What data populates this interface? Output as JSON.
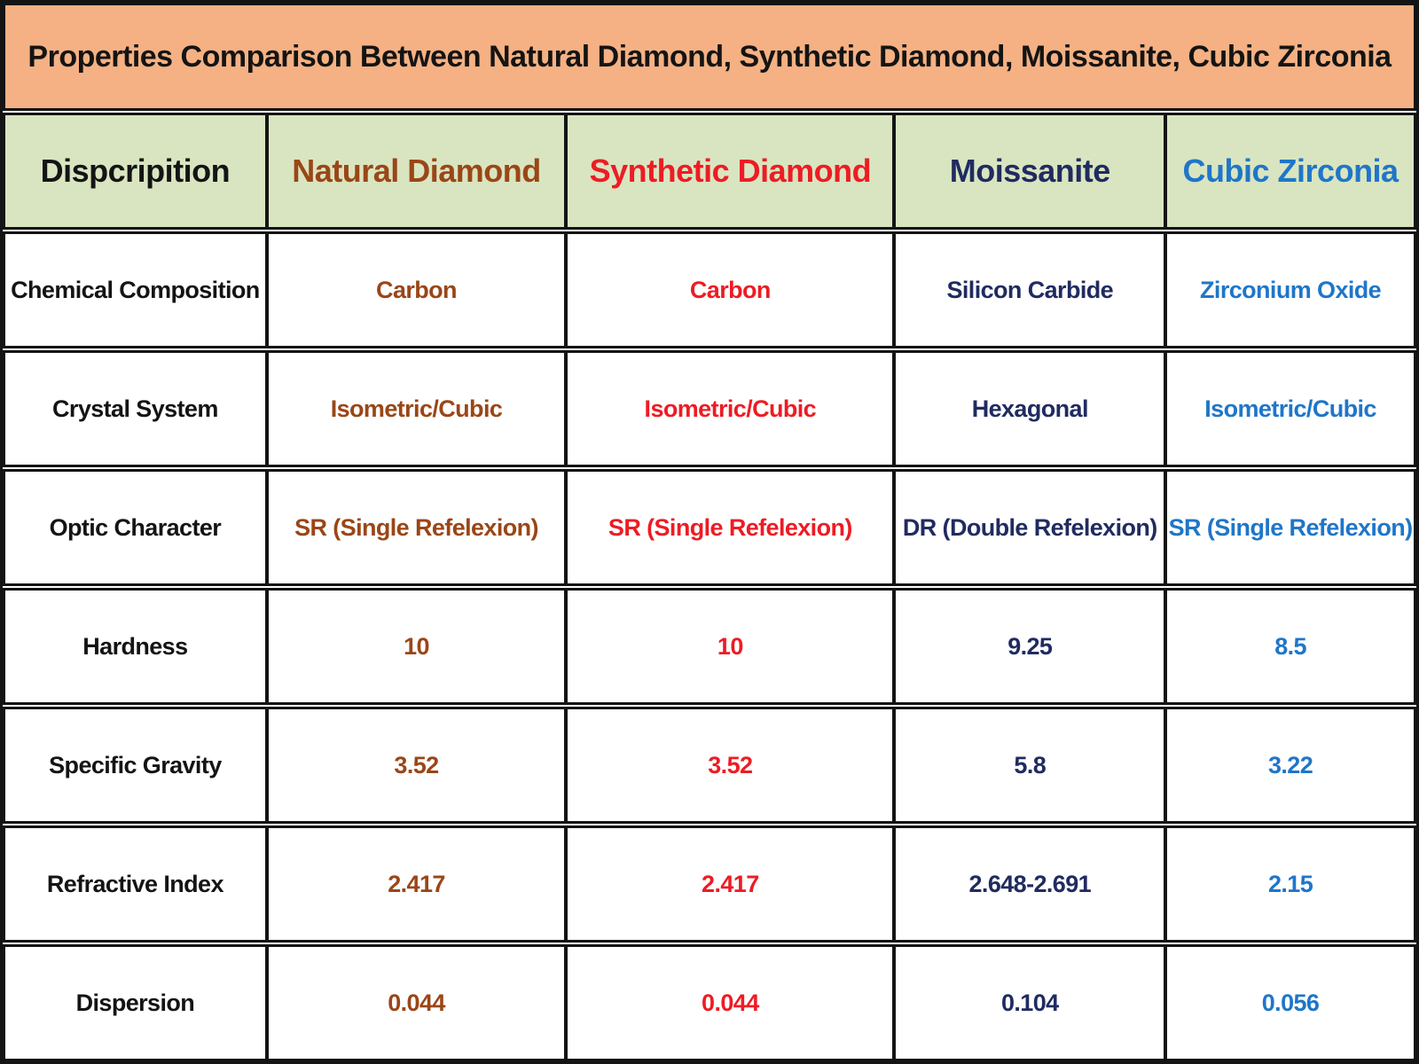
{
  "colors": {
    "title_bg": "#F5B183",
    "header_bg": "#D9E5C0",
    "border": "#141414",
    "natural_diamond": "#9A4617",
    "synthetic_diamond": "#ED1C24",
    "moissanite": "#202B60",
    "cubic_zirconia": "#1F76C8"
  },
  "chart_data": {
    "type": "table",
    "title": "Properties Comparison Between Natural Diamond, Synthetic Diamond, Moissanite, Cubic Zirconia",
    "columns": [
      "Dispcripition",
      "Natural Diamond",
      "Synthetic Diamond",
      "Moissanite",
      "Cubic Zirconia"
    ],
    "rows": [
      {
        "label": "Chemical Composition",
        "values": [
          "Carbon",
          "Carbon",
          "Silicon Carbide",
          "Zirconium Oxide"
        ]
      },
      {
        "label": "Crystal System",
        "values": [
          "Isometric/Cubic",
          "Isometric/Cubic",
          "Hexagonal",
          "Isometric/Cubic"
        ]
      },
      {
        "label": "Optic Character",
        "values": [
          "SR (Single Refelexion)",
          "SR (Single Refelexion)",
          "DR (Double Refelexion)",
          "SR (Single Refelexion)"
        ]
      },
      {
        "label": "Hardness",
        "values": [
          "10",
          "10",
          "9.25",
          "8.5"
        ]
      },
      {
        "label": "Specific Gravity",
        "values": [
          "3.52",
          "3.52",
          "5.8",
          "3.22"
        ]
      },
      {
        "label": "Refractive Index",
        "values": [
          "2.417",
          "2.417",
          "2.648-2.691",
          "2.15"
        ]
      },
      {
        "label": "Dispersion",
        "values": [
          "0.044",
          "0.044",
          "0.104",
          "0.056"
        ]
      }
    ]
  }
}
